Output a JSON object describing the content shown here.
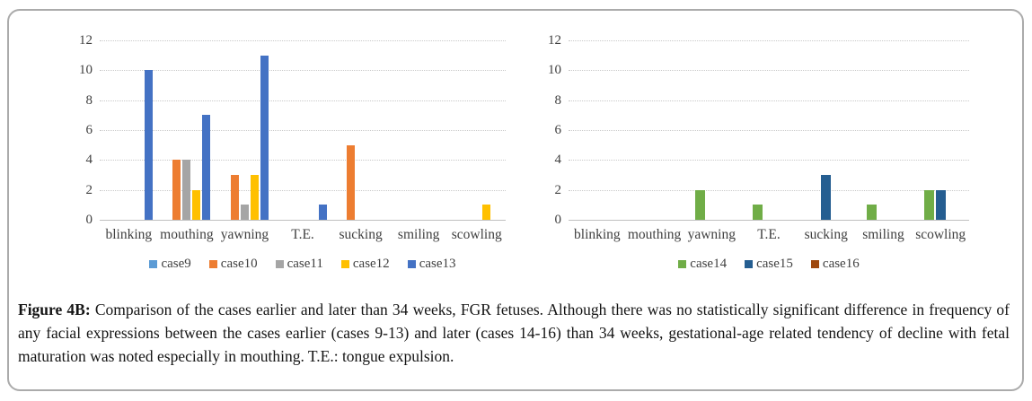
{
  "figure": {
    "caption_label": "Figure 4B:",
    "caption_text": " Comparison of the cases earlier and later than 34 weeks, FGR fetuses. Although there was no statistically significant difference in frequency of any facial expressions between the cases earlier (cases 9-13) and later (cases 14-16) than 34 weeks, gestational-age related tendency of decline with fetal maturation was noted especially in mouthing. T.E.: tongue expulsion."
  },
  "chart_data": [
    {
      "type": "bar",
      "title": "",
      "xlabel": "",
      "ylabel": "",
      "categories": [
        "blinking",
        "mouthing",
        "yawning",
        "T.E.",
        "sucking",
        "smiling",
        "scowling"
      ],
      "series": [
        {
          "name": "case9",
          "color": "#5B9BD5",
          "values": [
            0,
            0,
            0,
            0,
            0,
            0,
            0
          ]
        },
        {
          "name": "case10",
          "color": "#ED7D31",
          "values": [
            0,
            4,
            3,
            0,
            5,
            0,
            0
          ]
        },
        {
          "name": "case11",
          "color": "#A5A5A5",
          "values": [
            0,
            4,
            1,
            0,
            0,
            0,
            0
          ]
        },
        {
          "name": "case12",
          "color": "#FFC000",
          "values": [
            0,
            2,
            3,
            0,
            0,
            0,
            1
          ]
        },
        {
          "name": "case13",
          "color": "#4472C4",
          "values": [
            10,
            7,
            11,
            1,
            0,
            0,
            0
          ]
        }
      ],
      "ylim": [
        0,
        12
      ],
      "yticks": [
        0,
        2,
        4,
        6,
        8,
        10,
        12
      ],
      "grid": true,
      "gridline_style": "dotted",
      "legend_position": "bottom"
    },
    {
      "type": "bar",
      "title": "",
      "xlabel": "",
      "ylabel": "",
      "categories": [
        "blinking",
        "mouthing",
        "yawning",
        "T.E.",
        "sucking",
        "smiling",
        "scowling"
      ],
      "series": [
        {
          "name": "case14",
          "color": "#70AD47",
          "values": [
            0,
            0,
            2,
            1,
            0,
            1,
            2
          ]
        },
        {
          "name": "case15",
          "color": "#255E91",
          "values": [
            0,
            0,
            0,
            0,
            3,
            0,
            2
          ]
        },
        {
          "name": "case16",
          "color": "#9E480E",
          "values": [
            0,
            0,
            0,
            0,
            0,
            0,
            0
          ]
        }
      ],
      "ylim": [
        0,
        12
      ],
      "yticks": [
        0,
        2,
        4,
        6,
        8,
        10,
        12
      ],
      "grid": true,
      "gridline_style": "dotted",
      "legend_position": "bottom"
    }
  ]
}
